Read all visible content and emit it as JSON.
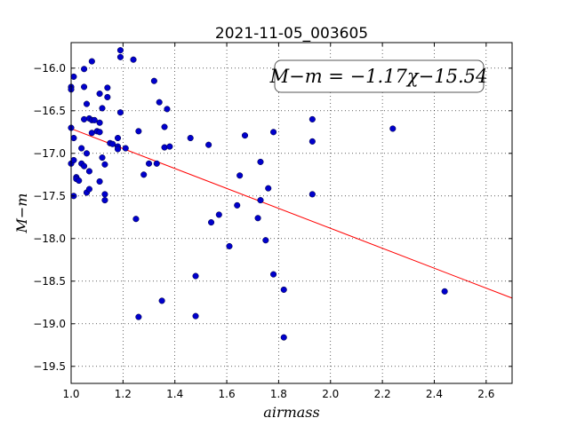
{
  "chart_data": {
    "type": "scatter",
    "title": "2021-11-05_003605",
    "xlabel": "airmass",
    "ylabel": "M−m",
    "xlim": [
      1.0,
      2.7
    ],
    "ylim": [
      -15.7,
      -19.7
    ],
    "y_inverted": true,
    "grid": true,
    "xticks": [
      1.0,
      1.2,
      1.4,
      1.6,
      1.8,
      2.0,
      2.2,
      2.4,
      2.6
    ],
    "xtick_labels": [
      "1.0",
      "1.2",
      "1.4",
      "1.6",
      "1.8",
      "2.0",
      "2.2",
      "2.4",
      "2.6"
    ],
    "yticks": [
      -16.0,
      -16.5,
      -17.0,
      -17.5,
      -18.0,
      -18.5,
      -19.0,
      -19.5
    ],
    "ytick_labels": [
      "−16.0",
      "−16.5",
      "−17.0",
      "−17.5",
      "−18.0",
      "−18.5",
      "−19.0",
      "−19.5"
    ],
    "annotation": "M−m = −1.17χ−15.54",
    "fit": {
      "slope": -1.17,
      "intercept": -15.54,
      "color": "#ff0000"
    },
    "marker_color": "#0000cc",
    "points": [
      {
        "x": 1.0,
        "y": -16.22
      },
      {
        "x": 1.0,
        "y": -16.25
      },
      {
        "x": 1.0,
        "y": -16.7
      },
      {
        "x": 1.0,
        "y": -17.12
      },
      {
        "x": 1.01,
        "y": -16.1
      },
      {
        "x": 1.01,
        "y": -16.82
      },
      {
        "x": 1.01,
        "y": -17.08
      },
      {
        "x": 1.01,
        "y": -17.5
      },
      {
        "x": 1.02,
        "y": -17.28
      },
      {
        "x": 1.02,
        "y": -17.3
      },
      {
        "x": 1.03,
        "y": -17.32
      },
      {
        "x": 1.04,
        "y": -16.94
      },
      {
        "x": 1.04,
        "y": -17.12
      },
      {
        "x": 1.05,
        "y": -17.15
      },
      {
        "x": 1.05,
        "y": -16.6
      },
      {
        "x": 1.05,
        "y": -16.22
      },
      {
        "x": 1.05,
        "y": -16.01
      },
      {
        "x": 1.06,
        "y": -16.42
      },
      {
        "x": 1.06,
        "y": -17.0
      },
      {
        "x": 1.06,
        "y": -17.46
      },
      {
        "x": 1.07,
        "y": -17.42
      },
      {
        "x": 1.07,
        "y": -17.21
      },
      {
        "x": 1.07,
        "y": -16.59
      },
      {
        "x": 1.08,
        "y": -16.61
      },
      {
        "x": 1.08,
        "y": -16.76
      },
      {
        "x": 1.08,
        "y": -15.92
      },
      {
        "x": 1.09,
        "y": -16.61
      },
      {
        "x": 1.1,
        "y": -16.74
      },
      {
        "x": 1.11,
        "y": -16.64
      },
      {
        "x": 1.11,
        "y": -16.75
      },
      {
        "x": 1.11,
        "y": -17.33
      },
      {
        "x": 1.11,
        "y": -16.3
      },
      {
        "x": 1.12,
        "y": -17.05
      },
      {
        "x": 1.12,
        "y": -16.47
      },
      {
        "x": 1.13,
        "y": -17.13
      },
      {
        "x": 1.13,
        "y": -17.48
      },
      {
        "x": 1.13,
        "y": -17.55
      },
      {
        "x": 1.14,
        "y": -16.23
      },
      {
        "x": 1.14,
        "y": -16.34
      },
      {
        "x": 1.15,
        "y": -16.88
      },
      {
        "x": 1.16,
        "y": -16.89
      },
      {
        "x": 1.18,
        "y": -16.82
      },
      {
        "x": 1.18,
        "y": -16.92
      },
      {
        "x": 1.18,
        "y": -16.95
      },
      {
        "x": 1.19,
        "y": -16.52
      },
      {
        "x": 1.19,
        "y": -15.79
      },
      {
        "x": 1.19,
        "y": -15.87
      },
      {
        "x": 1.21,
        "y": -16.94
      },
      {
        "x": 1.24,
        "y": -15.9
      },
      {
        "x": 1.25,
        "y": -17.77
      },
      {
        "x": 1.26,
        "y": -16.74
      },
      {
        "x": 1.26,
        "y": -18.92
      },
      {
        "x": 1.28,
        "y": -17.25
      },
      {
        "x": 1.3,
        "y": -17.12
      },
      {
        "x": 1.32,
        "y": -16.15
      },
      {
        "x": 1.33,
        "y": -17.12
      },
      {
        "x": 1.34,
        "y": -16.4
      },
      {
        "x": 1.35,
        "y": -18.73
      },
      {
        "x": 1.36,
        "y": -16.69
      },
      {
        "x": 1.36,
        "y": -16.93
      },
      {
        "x": 1.37,
        "y": -16.48
      },
      {
        "x": 1.38,
        "y": -16.92
      },
      {
        "x": 1.46,
        "y": -16.82
      },
      {
        "x": 1.48,
        "y": -18.44
      },
      {
        "x": 1.48,
        "y": -18.91
      },
      {
        "x": 1.53,
        "y": -16.9
      },
      {
        "x": 1.54,
        "y": -17.81
      },
      {
        "x": 1.57,
        "y": -17.72
      },
      {
        "x": 1.61,
        "y": -18.09
      },
      {
        "x": 1.64,
        "y": -17.61
      },
      {
        "x": 1.65,
        "y": -17.26
      },
      {
        "x": 1.67,
        "y": -16.79
      },
      {
        "x": 1.72,
        "y": -17.76
      },
      {
        "x": 1.73,
        "y": -17.55
      },
      {
        "x": 1.73,
        "y": -17.1
      },
      {
        "x": 1.75,
        "y": -18.02
      },
      {
        "x": 1.76,
        "y": -17.41
      },
      {
        "x": 1.78,
        "y": -18.42
      },
      {
        "x": 1.78,
        "y": -16.75
      },
      {
        "x": 1.82,
        "y": -19.16
      },
      {
        "x": 1.82,
        "y": -18.6
      },
      {
        "x": 1.93,
        "y": -16.6
      },
      {
        "x": 1.93,
        "y": -16.86
      },
      {
        "x": 1.93,
        "y": -17.48
      },
      {
        "x": 2.24,
        "y": -16.71
      },
      {
        "x": 2.44,
        "y": -18.62
      }
    ]
  }
}
